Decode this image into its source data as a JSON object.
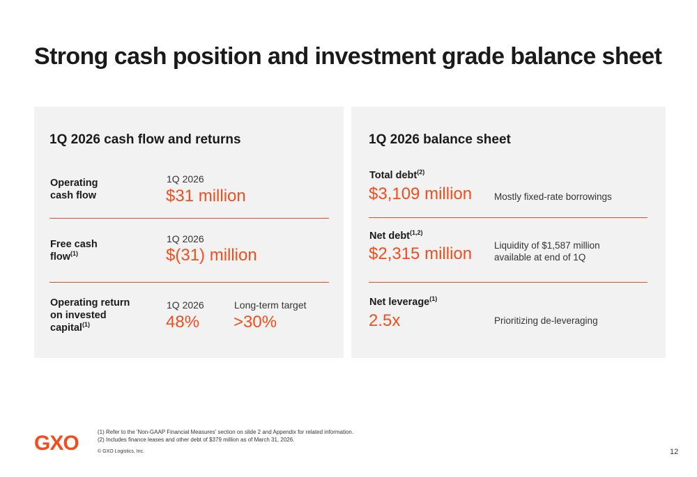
{
  "title": "Strong cash position and investment grade balance sheet",
  "colors": {
    "accent": "#f24d1c",
    "panel_bg": "#f2f2f2",
    "text": "#1a1a1a"
  },
  "left_panel": {
    "heading": "1Q 2026 cash flow and returns",
    "rows": [
      {
        "label_lines": [
          "Operating",
          "cash flow"
        ],
        "period": "1Q 2026",
        "value": "$31 million"
      },
      {
        "label_lines": [
          "Free cash",
          "flow"
        ],
        "label_sup": "(1)",
        "period": "1Q 2026",
        "value": "$(31) million"
      },
      {
        "label_lines": [
          "Operating return",
          "on invested",
          "capital"
        ],
        "label_sup": "(1)",
        "period": "1Q 2026",
        "value": "48%",
        "target_label": "Long-term target",
        "target_value": ">30%"
      }
    ]
  },
  "right_panel": {
    "heading": "1Q 2026 balance sheet",
    "rows": [
      {
        "label": "Total debt",
        "label_sup": "(2)",
        "value": "$3,109 million",
        "note_lines": [
          "Mostly fixed-rate borrowings"
        ]
      },
      {
        "label": "Net debt",
        "label_sup": "(1,2)",
        "value": "$2,315 million",
        "note_lines": [
          "Liquidity of $1,587 million",
          "available at end of 1Q"
        ]
      },
      {
        "label": "Net leverage",
        "label_sup": "(1)",
        "value": "2.5x",
        "note_lines": [
          "Prioritizing de-leveraging"
        ]
      }
    ]
  },
  "footer": {
    "logo": "GXO",
    "footnotes": [
      "(1) Refer to the 'Non-GAAP Financial Measures' section on slide 2 and Appendix for related information.",
      "(2) Includes finance leases and other debt of $379 million as of March 31, 2026."
    ],
    "copyright": "© GXO Logistics, Inc.",
    "page_number": "12"
  }
}
